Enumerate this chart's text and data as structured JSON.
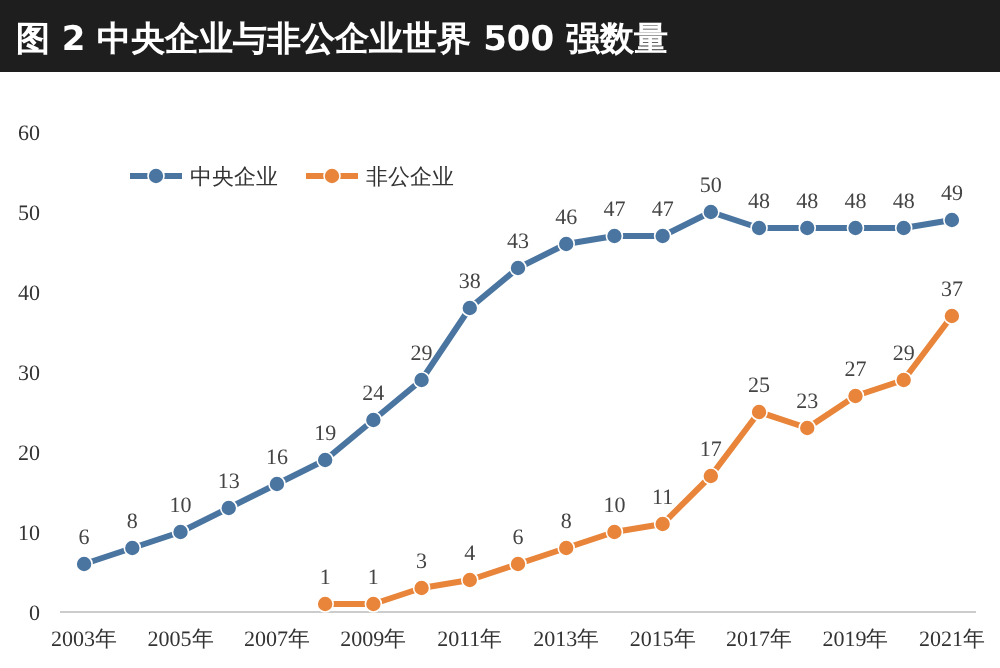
{
  "chart_data": {
    "type": "line",
    "title": "图 2  中央企业与非公企业世界 500 强数量",
    "categories": [
      "2003年",
      null,
      "2005年",
      null,
      "2007年",
      null,
      "2009年",
      null,
      "2011年",
      null,
      "2013年",
      null,
      "2015年",
      null,
      "2017年",
      null,
      "2019年",
      null,
      "2021年"
    ],
    "series": [
      {
        "name": "中央企业",
        "color": "#4a75a0",
        "values": [
          6,
          8,
          10,
          13,
          16,
          19,
          24,
          29,
          38,
          43,
          46,
          47,
          47,
          50,
          48,
          48,
          48,
          48,
          49
        ]
      },
      {
        "name": "非公企业",
        "color": "#e8853a",
        "values": [
          null,
          null,
          null,
          null,
          null,
          1,
          1,
          3,
          4,
          6,
          8,
          10,
          11,
          17,
          25,
          23,
          27,
          29,
          37
        ]
      }
    ],
    "ylim": [
      0,
      60
    ],
    "yticks": [
      0,
      10,
      20,
      30,
      40,
      50,
      60
    ],
    "data_labels": true,
    "legend": "top left",
    "marker": "circle",
    "grid": false
  }
}
